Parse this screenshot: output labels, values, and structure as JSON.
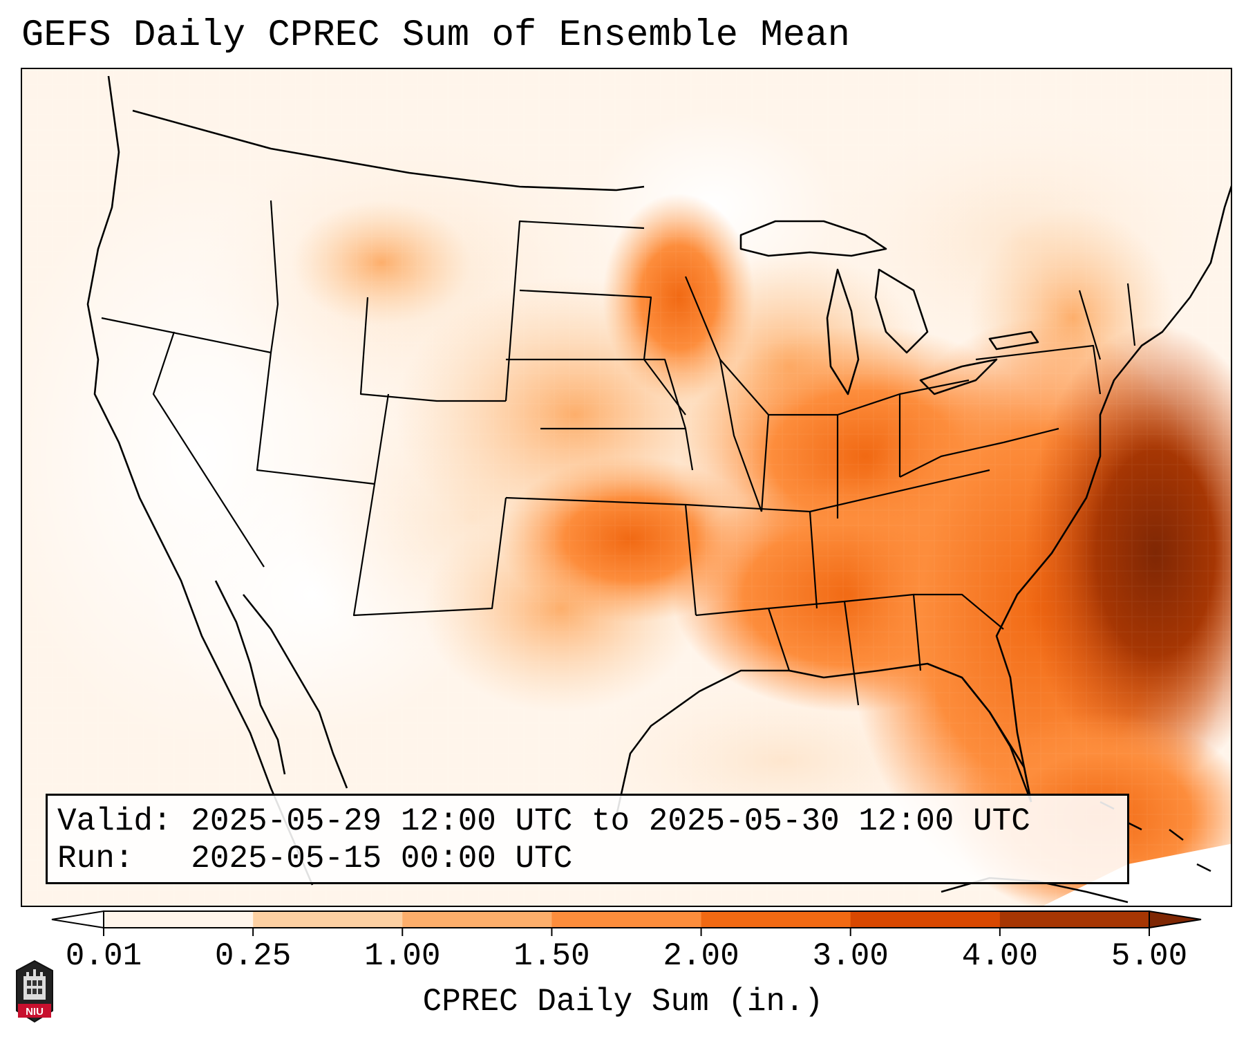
{
  "title": "GEFS Daily CPREC Sum of Ensemble Mean",
  "info": {
    "valid_line": "Valid: 2025-05-29 12:00 UTC to 2025-05-30 12:00 UTC",
    "run_line": "Run:   2025-05-15 00:00 UTC"
  },
  "colorbar": {
    "label": "CPREC Daily Sum (in.)",
    "ticks": [
      "0.01",
      "0.25",
      "1.00",
      "1.50",
      "2.00",
      "3.00",
      "4.00",
      "5.00"
    ],
    "colors": [
      "#fff5eb",
      "#fee6ce",
      "#fdd0a2",
      "#fdae6b",
      "#fd8d3c",
      "#f16913",
      "#d94801",
      "#a63603"
    ],
    "under_color": "#ffffff",
    "over_color": "#7f2704",
    "extend": "both"
  },
  "logo": {
    "text": "NIU",
    "color": "#c8102e"
  },
  "map": {
    "projection": "Lambert conformal, CONUS",
    "dominant_pattern": "heaviest convective precipitation over the western Atlantic off the Southeast coast; moderate amounts across the Southeast, Ohio Valley and southern/central Plains; light amounts in the West"
  }
}
